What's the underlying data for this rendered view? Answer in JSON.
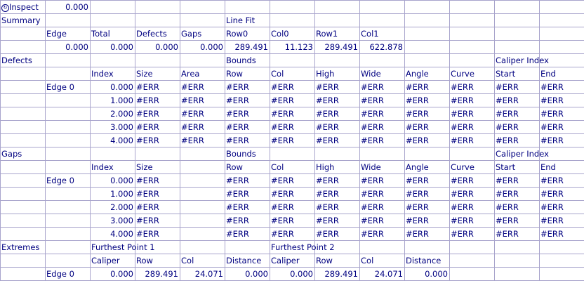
{
  "rows": [
    [
      {
        "t": "Inspect",
        "icon": "refresh-icon"
      },
      {
        "t": "0.000",
        "n": 1
      }
    ],
    [
      {
        "t": "Summary"
      },
      null,
      null,
      null,
      null,
      {
        "t": "Line Fit"
      }
    ],
    [
      null,
      {
        "t": "Edge"
      },
      {
        "t": "Total"
      },
      {
        "t": "Defects"
      },
      {
        "t": "Gaps"
      },
      {
        "t": "Row0"
      },
      {
        "t": "Col0"
      },
      {
        "t": "Row1"
      },
      {
        "t": "Col1"
      }
    ],
    [
      null,
      {
        "t": "0.000",
        "n": 1
      },
      {
        "t": "0.000",
        "n": 1
      },
      {
        "t": "0.000",
        "n": 1
      },
      {
        "t": "0.000",
        "n": 1
      },
      {
        "t": "289.491",
        "n": 1
      },
      {
        "t": "11.123",
        "n": 1
      },
      {
        "t": "289.491",
        "n": 1
      },
      {
        "t": "622.878",
        "n": 1
      }
    ],
    [
      {
        "t": "Defects"
      },
      null,
      null,
      null,
      null,
      {
        "t": "Bounds"
      },
      null,
      null,
      null,
      null,
      null,
      {
        "t": "Caliper Index"
      }
    ],
    [
      null,
      null,
      {
        "t": "Index"
      },
      {
        "t": "Size"
      },
      {
        "t": "Area"
      },
      {
        "t": "Row"
      },
      {
        "t": "Col"
      },
      {
        "t": "High"
      },
      {
        "t": "Wide"
      },
      {
        "t": "Angle"
      },
      {
        "t": "Curve"
      },
      {
        "t": "Start"
      },
      {
        "t": "End"
      }
    ],
    [
      null,
      {
        "t": "Edge 0"
      },
      {
        "t": "0.000",
        "n": 1
      },
      {
        "t": "#ERR"
      },
      {
        "t": "#ERR"
      },
      {
        "t": "#ERR"
      },
      {
        "t": "#ERR"
      },
      {
        "t": "#ERR"
      },
      {
        "t": "#ERR"
      },
      {
        "t": "#ERR"
      },
      {
        "t": "#ERR"
      },
      {
        "t": "#ERR"
      },
      {
        "t": "#ERR"
      }
    ],
    [
      null,
      null,
      {
        "t": "1.000",
        "n": 1
      },
      {
        "t": "#ERR"
      },
      {
        "t": "#ERR"
      },
      {
        "t": "#ERR"
      },
      {
        "t": "#ERR"
      },
      {
        "t": "#ERR"
      },
      {
        "t": "#ERR"
      },
      {
        "t": "#ERR"
      },
      {
        "t": "#ERR"
      },
      {
        "t": "#ERR"
      },
      {
        "t": "#ERR"
      }
    ],
    [
      null,
      null,
      {
        "t": "2.000",
        "n": 1
      },
      {
        "t": "#ERR"
      },
      {
        "t": "#ERR"
      },
      {
        "t": "#ERR"
      },
      {
        "t": "#ERR"
      },
      {
        "t": "#ERR"
      },
      {
        "t": "#ERR"
      },
      {
        "t": "#ERR"
      },
      {
        "t": "#ERR"
      },
      {
        "t": "#ERR"
      },
      {
        "t": "#ERR"
      }
    ],
    [
      null,
      null,
      {
        "t": "3.000",
        "n": 1
      },
      {
        "t": "#ERR"
      },
      {
        "t": "#ERR"
      },
      {
        "t": "#ERR"
      },
      {
        "t": "#ERR"
      },
      {
        "t": "#ERR"
      },
      {
        "t": "#ERR"
      },
      {
        "t": "#ERR"
      },
      {
        "t": "#ERR"
      },
      {
        "t": "#ERR"
      },
      {
        "t": "#ERR"
      }
    ],
    [
      null,
      null,
      {
        "t": "4.000",
        "n": 1
      },
      {
        "t": "#ERR"
      },
      {
        "t": "#ERR"
      },
      {
        "t": "#ERR"
      },
      {
        "t": "#ERR"
      },
      {
        "t": "#ERR"
      },
      {
        "t": "#ERR"
      },
      {
        "t": "#ERR"
      },
      {
        "t": "#ERR"
      },
      {
        "t": "#ERR"
      },
      {
        "t": "#ERR"
      }
    ],
    [
      {
        "t": "Gaps"
      },
      null,
      null,
      null,
      null,
      {
        "t": "Bounds"
      },
      null,
      null,
      null,
      null,
      null,
      {
        "t": "Caliper Index"
      }
    ],
    [
      null,
      null,
      {
        "t": "Index"
      },
      {
        "t": "Size"
      },
      null,
      {
        "t": "Row"
      },
      {
        "t": "Col"
      },
      {
        "t": "High"
      },
      {
        "t": "Wide"
      },
      {
        "t": "Angle"
      },
      {
        "t": "Curve"
      },
      {
        "t": "Start"
      },
      {
        "t": "End"
      }
    ],
    [
      null,
      {
        "t": "Edge 0"
      },
      {
        "t": "0.000",
        "n": 1
      },
      {
        "t": "#ERR"
      },
      null,
      {
        "t": "#ERR"
      },
      {
        "t": "#ERR"
      },
      {
        "t": "#ERR"
      },
      {
        "t": "#ERR"
      },
      {
        "t": "#ERR"
      },
      {
        "t": "#ERR"
      },
      {
        "t": "#ERR"
      },
      {
        "t": "#ERR"
      }
    ],
    [
      null,
      null,
      {
        "t": "1.000",
        "n": 1
      },
      {
        "t": "#ERR"
      },
      null,
      {
        "t": "#ERR"
      },
      {
        "t": "#ERR"
      },
      {
        "t": "#ERR"
      },
      {
        "t": "#ERR"
      },
      {
        "t": "#ERR"
      },
      {
        "t": "#ERR"
      },
      {
        "t": "#ERR"
      },
      {
        "t": "#ERR"
      }
    ],
    [
      null,
      null,
      {
        "t": "2.000",
        "n": 1
      },
      {
        "t": "#ERR"
      },
      null,
      {
        "t": "#ERR"
      },
      {
        "t": "#ERR"
      },
      {
        "t": "#ERR"
      },
      {
        "t": "#ERR"
      },
      {
        "t": "#ERR"
      },
      {
        "t": "#ERR"
      },
      {
        "t": "#ERR"
      },
      {
        "t": "#ERR"
      }
    ],
    [
      null,
      null,
      {
        "t": "3.000",
        "n": 1
      },
      {
        "t": "#ERR"
      },
      null,
      {
        "t": "#ERR"
      },
      {
        "t": "#ERR"
      },
      {
        "t": "#ERR"
      },
      {
        "t": "#ERR"
      },
      {
        "t": "#ERR"
      },
      {
        "t": "#ERR"
      },
      {
        "t": "#ERR"
      },
      {
        "t": "#ERR"
      }
    ],
    [
      null,
      null,
      {
        "t": "4.000",
        "n": 1
      },
      {
        "t": "#ERR"
      },
      null,
      {
        "t": "#ERR"
      },
      {
        "t": "#ERR"
      },
      {
        "t": "#ERR"
      },
      {
        "t": "#ERR"
      },
      {
        "t": "#ERR"
      },
      {
        "t": "#ERR"
      },
      {
        "t": "#ERR"
      },
      {
        "t": "#ERR"
      }
    ],
    [
      {
        "t": "Extremes"
      },
      null,
      {
        "t": "Furthest Point 1"
      },
      null,
      null,
      null,
      {
        "t": "Furthest Point 2"
      }
    ],
    [
      null,
      null,
      {
        "t": "Caliper"
      },
      {
        "t": "Row"
      },
      {
        "t": "Col"
      },
      {
        "t": "Distance"
      },
      {
        "t": "Caliper"
      },
      {
        "t": "Row"
      },
      {
        "t": "Col"
      },
      {
        "t": "Distance"
      }
    ],
    [
      null,
      {
        "t": "Edge 0"
      },
      {
        "t": "0.000",
        "n": 1
      },
      {
        "t": "289.491",
        "n": 1
      },
      {
        "t": "24.071",
        "n": 1
      },
      {
        "t": "0.000",
        "n": 1
      },
      {
        "t": "0.000",
        "n": 1
      },
      {
        "t": "289.491",
        "n": 1
      },
      {
        "t": "24.071",
        "n": 1
      },
      {
        "t": "0.000",
        "n": 1
      }
    ]
  ],
  "colors": {
    "text": "#000080",
    "grid": "#a8a4cc"
  }
}
